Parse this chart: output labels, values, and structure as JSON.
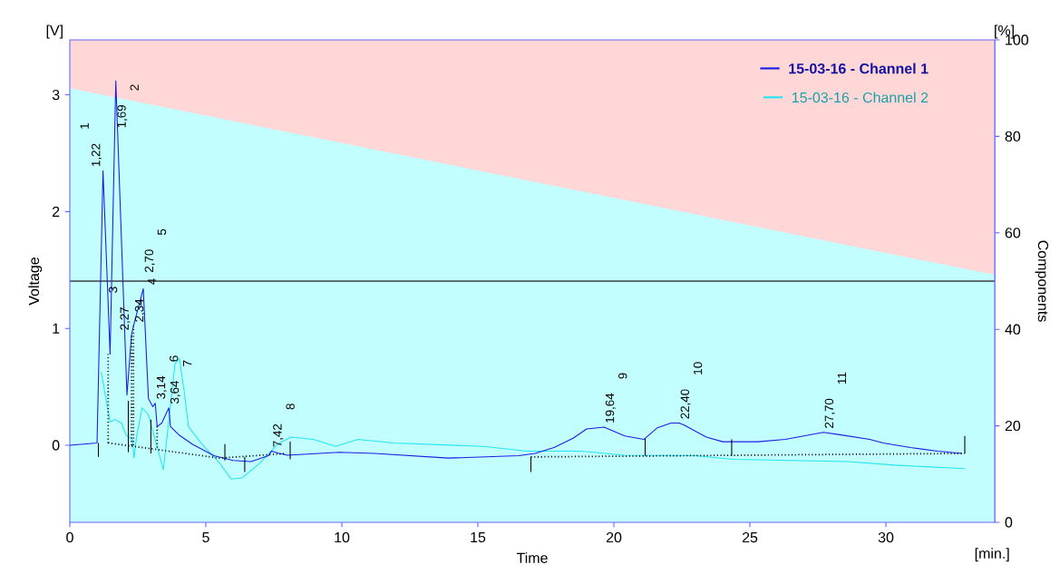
{
  "chart_data": {
    "type": "line",
    "xlabel": "Time",
    "ylabel": "Voltage",
    "y2label": "Components",
    "xlim": [
      0,
      34
    ],
    "ylim": [
      -0.66,
      3.47
    ],
    "y2lim": [
      0,
      100
    ],
    "xticks": [
      0,
      5,
      10,
      15,
      20,
      25,
      30
    ],
    "yticks": [
      0,
      1,
      2,
      3
    ],
    "y2ticks": [
      0,
      20,
      40,
      60,
      80,
      100
    ],
    "legend": "top right",
    "series": [
      {
        "name": "15-03-16 -  Channel 1",
        "color": "#1c1ce6",
        "x": [
          0,
          1.0,
          1.22,
          1.48,
          1.69,
          2.1,
          2.27,
          2.34,
          2.7,
          2.89,
          3.05,
          3.14,
          3.21,
          3.38,
          3.64,
          3.7,
          4.03,
          4.5,
          5.3,
          6.0,
          6.66,
          7.3,
          7.42,
          7.7,
          8.0,
          9.9,
          11.2,
          13.9,
          16.5,
          17.1,
          17.8,
          18.5,
          19.0,
          19.64,
          20.4,
          21.1,
          21.6,
          22.1,
          22.4,
          22.6,
          23.4,
          24.0,
          25.3,
          26.3,
          27.7,
          28.3,
          29.4,
          29.9,
          30.9,
          31.9,
          32.8
        ],
        "values": [
          0,
          0.02,
          2.35,
          0.78,
          3.12,
          0.43,
          0.95,
          1.02,
          1.34,
          0.4,
          0.33,
          0.36,
          0.16,
          0.19,
          0.32,
          0.16,
          0.085,
          0.01,
          -0.09,
          -0.13,
          -0.14,
          -0.09,
          -0.05,
          -0.07,
          -0.085,
          -0.06,
          -0.07,
          -0.11,
          -0.09,
          -0.07,
          -0.02,
          0.06,
          0.14,
          0.155,
          0.08,
          0.05,
          0.15,
          0.19,
          0.19,
          0.17,
          0.07,
          0.03,
          0.03,
          0.05,
          0.11,
          0.09,
          0.05,
          0.02,
          -0.02,
          -0.05,
          -0.07
        ]
      },
      {
        "name": "15-03-16 -  Channel 2",
        "color": "#22e6f2",
        "x": [
          1.15,
          1.48,
          1.67,
          1.9,
          2.07,
          2.3,
          2.36,
          2.46,
          2.66,
          2.89,
          3.44,
          3.87,
          4.03,
          4.2,
          4.36,
          4.85,
          5.5,
          5.93,
          6.33,
          7.0,
          7.64,
          8.13,
          8.95,
          9.77,
          10.6,
          11.9,
          15.2,
          16.8,
          18.8,
          20.4,
          23.0,
          24.4,
          28.6,
          30.3,
          32.9
        ],
        "values": [
          0.63,
          0.2,
          0.22,
          0.19,
          0.085,
          0.05,
          -0.11,
          0.085,
          0.32,
          0.26,
          -0.21,
          0.7,
          0.74,
          0.47,
          0.16,
          0.01,
          -0.15,
          -0.29,
          -0.28,
          -0.15,
          0.01,
          0.07,
          0.05,
          -0.01,
          0.05,
          0.02,
          -0.01,
          -0.05,
          -0.05,
          -0.085,
          -0.09,
          -0.12,
          -0.14,
          -0.17,
          -0.2
        ]
      },
      {
        "type": "area",
        "axis": "y2",
        "color": "#ffd7d7",
        "x": [
          0,
          34
        ],
        "values": [
          100,
          100
        ]
      },
      {
        "type": "area",
        "axis": "y2",
        "color": "#c2fefe",
        "x": [
          0,
          34
        ],
        "values": [
          90,
          51.3
        ]
      },
      {
        "line_style": "dotted",
        "color": "#000000",
        "x": [
          1.41,
          5.5,
          7.97,
          null,
          1.41,
          1.41,
          null,
          2.27,
          2.27,
          null,
          2.34,
          2.34,
          null,
          3.21,
          3.21,
          null,
          16.95,
          32.9
        ],
        "values": [
          0.02,
          -0.11,
          -0.07,
          null,
          0.02,
          0.78,
          null,
          0.0,
          0.95,
          null,
          0.0,
          1.02,
          null,
          -0.02,
          0.16,
          null,
          -0.1,
          -0.07
        ]
      },
      {
        "color": "#000000",
        "x": [
          1.05,
          1.05,
          null,
          2.15,
          2.15,
          null,
          2.98,
          2.98,
          null,
          5.7,
          5.7,
          null,
          6.43,
          6.43,
          null,
          8.1,
          8.1,
          null,
          16.95,
          16.95,
          null,
          21.15,
          21.15,
          null,
          24.33,
          24.33,
          null,
          32.9,
          32.9
        ],
        "values": [
          -0.1,
          0.02,
          null,
          -0.06,
          0.38,
          null,
          -0.07,
          0.22,
          null,
          -0.13,
          0.01,
          null,
          -0.23,
          -0.1,
          null,
          -0.12,
          0.03,
          null,
          -0.23,
          -0.1,
          null,
          -0.09,
          0.06,
          null,
          -0.09,
          0.05,
          null,
          -0.07,
          0.08
        ]
      }
    ],
    "ref_lines": [
      {
        "axis": "y2",
        "value": 50,
        "color": "#5f6f6f"
      }
    ],
    "annotations": [
      "[V]",
      "[min.]",
      "[%]",
      {
        "text": "1,22",
        "x": 1.22,
        "y": 2.35
      },
      "1",
      {
        "text": "1,69",
        "x": 1.69,
        "y": 3.12
      },
      "2",
      {
        "text": "2,27",
        "x": 2.27,
        "y": 0.95
      },
      "3",
      {
        "text": "2,34",
        "x": 2.34,
        "y": 1.02
      },
      "4",
      {
        "text": "2,70",
        "x": 2.7,
        "y": 1.34
      },
      "5",
      {
        "text": "3,14",
        "x": 3.14,
        "y": 0.36
      },
      "6",
      {
        "text": "3,64",
        "x": 3.64,
        "y": 0.32
      },
      "7",
      {
        "text": "7,42",
        "x": 7.42,
        "y": -0.05
      },
      "8",
      {
        "text": "19,64",
        "x": 19.64,
        "y": 0.155
      },
      "9",
      {
        "text": "22,40",
        "x": 22.4,
        "y": 0.19
      },
      "10",
      {
        "text": "27,70",
        "x": 27.7,
        "y": 0.11
      },
      "11"
    ]
  }
}
